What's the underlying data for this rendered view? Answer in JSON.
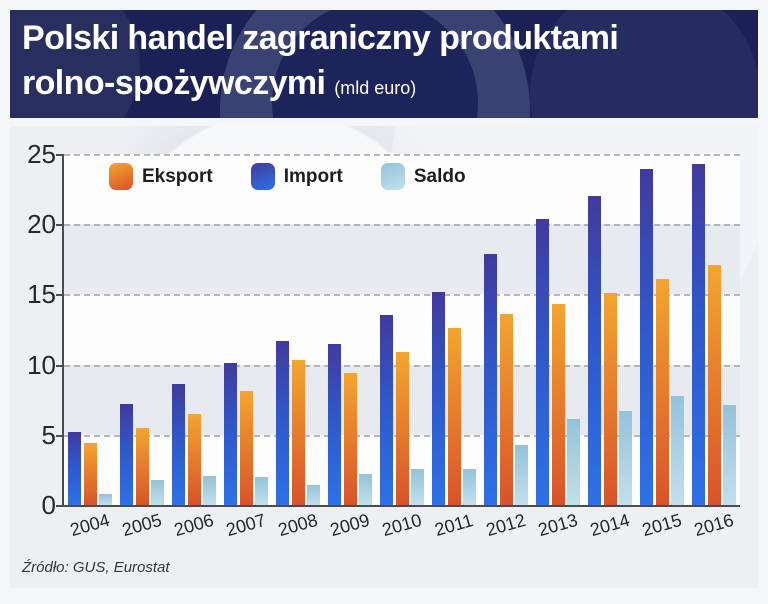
{
  "header": {
    "title_line1": "Polski handel zagraniczny produktami",
    "title_line2": "rolno-spożywczymi",
    "title_suffix": "(mld euro)",
    "background_color": "#1b2157",
    "text_color": "#ffffff"
  },
  "footer": {
    "source": "Źródło: GUS, Eurostat"
  },
  "chart_data": {
    "type": "bar",
    "title": "Polski handel zagraniczny produktami rolno-spożywczymi (mld euro)",
    "categories": [
      "2004",
      "2005",
      "2006",
      "2007",
      "2008",
      "2009",
      "2010",
      "2011",
      "2012",
      "2013",
      "2014",
      "2015",
      "2016"
    ],
    "series": [
      {
        "name": "Eksport",
        "values": [
          4.4,
          5.5,
          6.5,
          8.1,
          10.3,
          9.4,
          10.9,
          12.6,
          13.6,
          14.3,
          15.1,
          16.1,
          17.1
        ],
        "color_top": "#f3a52e",
        "color_bottom": "#d9532a"
      },
      {
        "name": "Import",
        "values": [
          5.2,
          7.2,
          8.6,
          10.1,
          11.7,
          11.5,
          13.5,
          15.2,
          17.9,
          20.4,
          22.0,
          23.9,
          24.3
        ],
        "color_top": "#413a9e",
        "color_mid": "#3057c9",
        "color_bottom": "#2e71e5"
      },
      {
        "name": "Saldo",
        "values": [
          0.8,
          1.8,
          2.1,
          2.0,
          1.4,
          2.2,
          2.6,
          2.6,
          4.3,
          6.1,
          6.7,
          7.8,
          7.1
        ],
        "color_top": "#93c3d9",
        "color_bottom": "#c2dfec"
      }
    ],
    "draw_order": [
      "Import",
      "Eksport",
      "Saldo"
    ],
    "legend_order": [
      "Eksport",
      "Import",
      "Saldo"
    ],
    "legend_position": "top",
    "xlabel": "",
    "ylabel": "",
    "ylim": [
      0,
      25
    ],
    "yticks": [
      0,
      5,
      10,
      15,
      20,
      25
    ],
    "grid": "dashed horizontal",
    "x_tick_rotation_deg": -16
  }
}
